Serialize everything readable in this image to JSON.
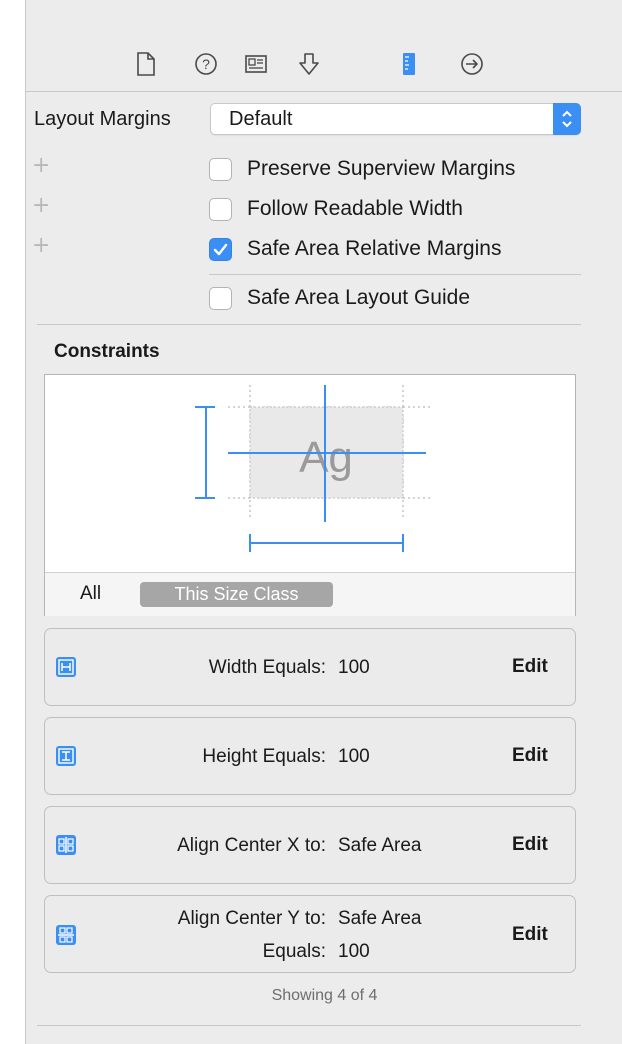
{
  "toolbar": {
    "icons": [
      "file-inspector-icon",
      "quick-help-icon",
      "identity-inspector-icon",
      "attributes-inspector-icon",
      "size-inspector-icon",
      "connections-inspector-icon"
    ],
    "active_color": "#3b8ff4"
  },
  "layout_margins": {
    "label": "Layout Margins",
    "value": "Default"
  },
  "options": [
    {
      "label": "Preserve Superview Margins",
      "checked": false
    },
    {
      "label": "Follow Readable Width",
      "checked": false
    },
    {
      "label": "Safe Area Relative Margins",
      "checked": true
    }
  ],
  "safe_area_guide": {
    "label": "Safe Area Layout Guide",
    "checked": false
  },
  "constraints": {
    "title": "Constraints",
    "preview_text": "Ag",
    "filter_all": "All",
    "filter_size_class": "This Size Class",
    "items": [
      {
        "label": "Width Equals:",
        "value": "100",
        "edit": "Edit"
      },
      {
        "label": "Height Equals:",
        "value": "100",
        "edit": "Edit"
      },
      {
        "label": "Align Center X to:",
        "value": "Safe Area",
        "edit": "Edit"
      },
      {
        "label": "Align Center Y to:",
        "value": "Safe Area",
        "label2": "Equals:",
        "value2": "100",
        "edit": "Edit"
      }
    ],
    "footer": "Showing 4 of 4"
  },
  "colors": {
    "accent": "#3b8ff4",
    "panel_bg": "#ececec"
  }
}
